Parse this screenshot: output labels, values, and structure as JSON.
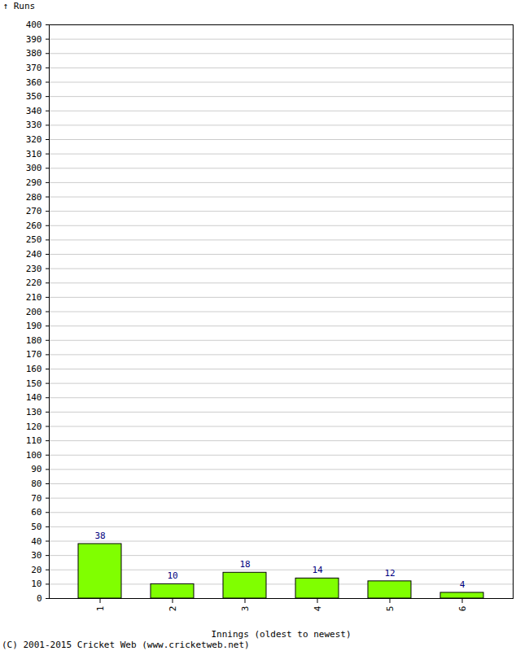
{
  "chart_data": {
    "type": "bar",
    "caption": "(C) 2001-2015 Cricket Web (www.cricketweb.net)",
    "x_label": "Innings (oldest to newest)",
    "y_label": "Runs",
    "categories": [
      "1",
      "2",
      "3",
      "4",
      "5",
      "6"
    ],
    "values": [
      38,
      10,
      18,
      14,
      12,
      4
    ],
    "color": "#80ff00",
    "ylim": [
      0,
      400
    ],
    "yticks": [
      0,
      10,
      20,
      30,
      40,
      50,
      60,
      70,
      80,
      90,
      100,
      110,
      120,
      130,
      140,
      150,
      160,
      170,
      180,
      190,
      200,
      210,
      220,
      230,
      240,
      250,
      260,
      270,
      280,
      290,
      300,
      310,
      320,
      330,
      340,
      350,
      360,
      370,
      380,
      390,
      400
    ],
    "grid": true,
    "data_labels": true
  }
}
